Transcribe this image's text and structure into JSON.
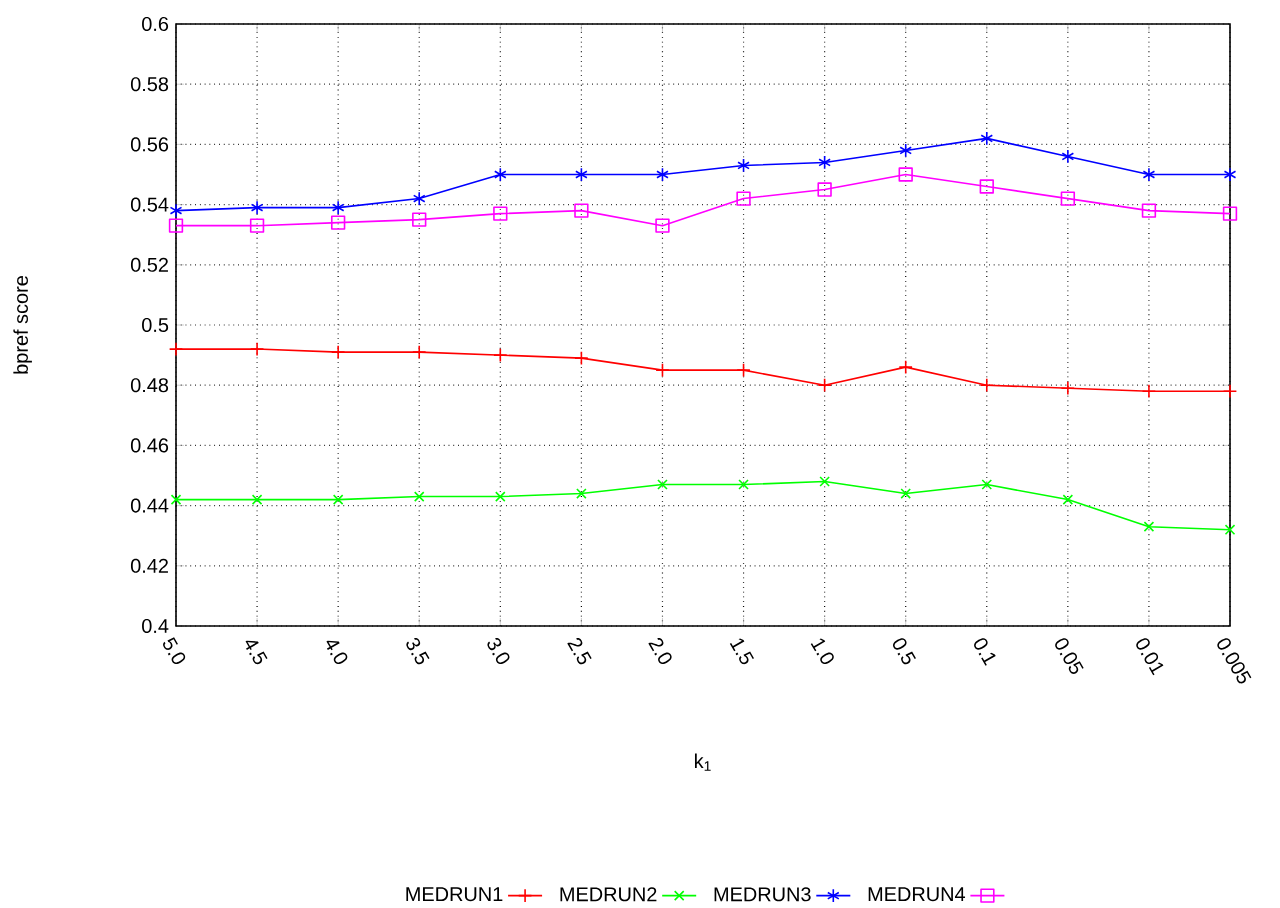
{
  "chart_data": {
    "type": "line",
    "xlabel": "k$_{1}$",
    "ylabel": "bpref score",
    "categories": [
      "5.0",
      "4.5",
      "4.0",
      "3.5",
      "3.0",
      "2.5",
      "2.0",
      "1.5",
      "1.0",
      "0.5",
      "0.1",
      "0.05",
      "0.01",
      "0.005"
    ],
    "series": [
      {
        "name": "MEDRUN1",
        "color": "#ff0000",
        "marker": "cross",
        "values": [
          0.492,
          0.492,
          0.491,
          0.491,
          0.49,
          0.489,
          0.485,
          0.485,
          0.48,
          0.486,
          0.48,
          0.479,
          0.478,
          0.478
        ]
      },
      {
        "name": "MEDRUN2",
        "color": "#00ff00",
        "marker": "cross",
        "values": [
          0.442,
          0.442,
          0.442,
          0.443,
          0.443,
          0.444,
          0.447,
          0.447,
          0.448,
          0.444,
          0.447,
          0.442,
          0.433,
          0.432
        ]
      },
      {
        "name": "MEDRUN3",
        "color": "#0000ff",
        "marker": "cross",
        "values": [
          0.538,
          0.539,
          0.539,
          0.542,
          0.55,
          0.55,
          0.55,
          0.553,
          0.554,
          0.558,
          0.562,
          0.556,
          0.55,
          0.55
        ]
      },
      {
        "name": "MEDRUN4",
        "color": "#ff00ff",
        "marker": "square",
        "values": [
          0.533,
          0.533,
          0.534,
          0.535,
          0.537,
          0.538,
          0.533,
          0.542,
          0.545,
          0.55,
          0.546,
          0.542,
          0.538,
          0.537
        ]
      }
    ],
    "ylim": [
      0.4,
      0.6
    ],
    "yticks": [
      0.4,
      0.42,
      0.44,
      0.46,
      0.48,
      0.5,
      0.52,
      0.54,
      0.56,
      0.58,
      0.6
    ],
    "grid": true,
    "legend": "bottom",
    "line_style": "solid"
  }
}
